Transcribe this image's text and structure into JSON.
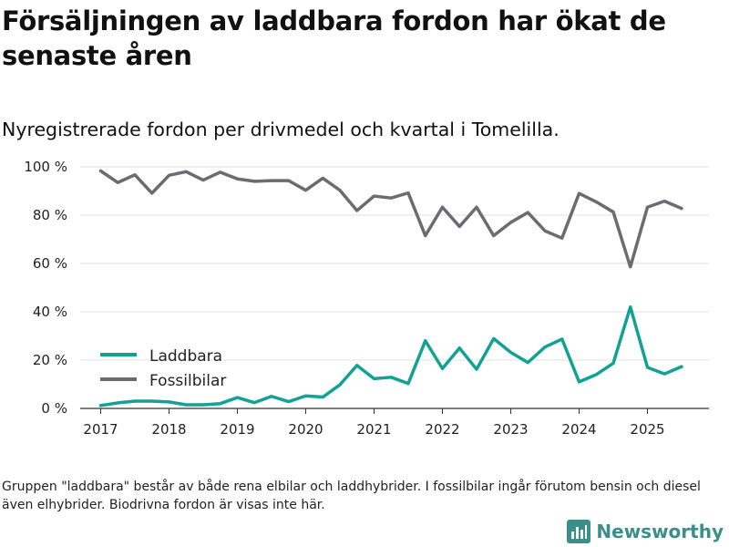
{
  "title": "Försäljningen av laddbara fordon har ökat de senaste åren",
  "subtitle": "Nyregistrerade fordon per drivmedel och kvartal i Tomelilla.",
  "footnote": "Gruppen \"laddbara\" består av både rena elbilar och laddhybrider. I fossilbilar ingår förutom bensin och diesel även elhybrider. Biodrivna fordon är visas inte här.",
  "brand": {
    "name": "Newsworthy",
    "icon": "bar-chart-logo-icon"
  },
  "colors": {
    "laddbara": "#12a294",
    "fossilbilar": "#6b6b70",
    "grid": "#e2e2e2",
    "axis": "#333333"
  },
  "chart_data": {
    "type": "line",
    "title": "Nyregistrerade fordon per drivmedel och kvartal i Tomelilla.",
    "xlabel": "",
    "ylabel": "",
    "xlim": [
      2016.7,
      2025.9
    ],
    "ylim": [
      0,
      100
    ],
    "y_ticks": [
      0,
      20,
      40,
      60,
      80,
      100
    ],
    "y_tick_labels": [
      "0 %",
      "20 %",
      "40 %",
      "60 %",
      "80 %",
      "100 %"
    ],
    "x_ticks": [
      2017,
      2018,
      2019,
      2020,
      2021,
      2022,
      2023,
      2024,
      2025
    ],
    "x_tick_labels": [
      "2017",
      "2018",
      "2019",
      "2020",
      "2021",
      "2022",
      "2023",
      "2024",
      "2025"
    ],
    "legend_position": "left-center",
    "x": [
      2017.0,
      2017.25,
      2017.5,
      2017.75,
      2018.0,
      2018.25,
      2018.5,
      2018.75,
      2019.0,
      2019.25,
      2019.5,
      2019.75,
      2020.0,
      2020.25,
      2020.5,
      2020.75,
      2021.0,
      2021.25,
      2021.5,
      2021.75,
      2022.0,
      2022.25,
      2022.5,
      2022.75,
      2023.0,
      2023.25,
      2023.5,
      2023.75,
      2024.0,
      2024.25,
      2024.5,
      2024.75,
      2025.0,
      2025.25,
      2025.5
    ],
    "series": [
      {
        "name": "Laddbara",
        "color_key": "laddbara",
        "values": [
          1.2,
          2.3,
          3.0,
          3.0,
          2.7,
          1.5,
          1.5,
          2.0,
          4.5,
          2.4,
          5.0,
          2.8,
          5.2,
          4.7,
          9.8,
          17.8,
          12.3,
          12.9,
          10.3,
          28.0,
          16.5,
          25.0,
          16.2,
          28.9,
          23.2,
          19.0,
          25.4,
          28.7,
          11.0,
          14.0,
          18.7,
          42.0,
          17.0,
          14.3,
          17.3
        ]
      },
      {
        "name": "Fossilbilar",
        "color_key": "fossilbilar",
        "values": [
          98.3,
          93.5,
          96.7,
          89.1,
          96.5,
          98.0,
          94.5,
          97.8,
          95.0,
          94.0,
          94.3,
          94.3,
          90.3,
          95.3,
          90.3,
          81.9,
          87.9,
          87.1,
          89.2,
          71.5,
          83.3,
          75.3,
          83.3,
          71.5,
          77.0,
          81.1,
          73.5,
          70.5,
          89.0,
          85.5,
          81.3,
          58.6,
          83.3,
          85.8,
          82.8
        ]
      }
    ]
  }
}
